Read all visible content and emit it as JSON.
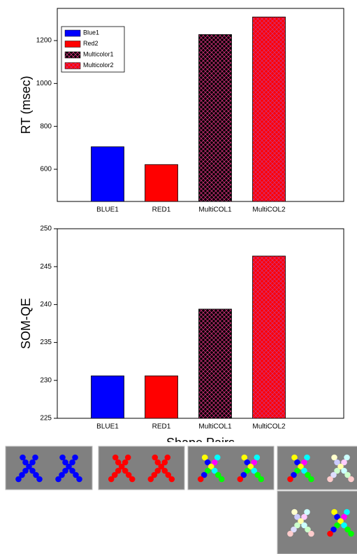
{
  "chart_data": [
    {
      "type": "bar",
      "ylabel": "RT (msec)",
      "categories": [
        "BLUE1",
        "RED1",
        "MultiCOL1",
        "MultiCOL2"
      ],
      "values": [
        705,
        622,
        1228,
        1310
      ],
      "colors": [
        "#0000ff",
        "#ff0000",
        "#000000",
        "#ff0000"
      ],
      "hatched": [
        false,
        false,
        true,
        true
      ],
      "legend_labels": [
        "Blue1",
        "Red2",
        "Multicolor1",
        "Multicolor2"
      ],
      "legend": "upper left",
      "ylim": [
        450,
        1350
      ],
      "yticks": [
        600,
        800,
        1000,
        1200
      ]
    },
    {
      "type": "bar",
      "ylabel": "SOM-QE",
      "xlabel": "Shape Pairs",
      "categories": [
        "BLUE1",
        "RED1",
        "MultiCOL1",
        "MultiCOL2"
      ],
      "values": [
        230.6,
        230.6,
        239.4,
        246.4
      ],
      "colors": [
        "#0000ff",
        "#ff0000",
        "#000000",
        "#ff0000"
      ],
      "hatched": [
        false,
        false,
        true,
        true
      ],
      "ylim": [
        225,
        250
      ],
      "yticks": [
        225,
        230,
        235,
        240,
        245,
        250
      ]
    }
  ]
}
